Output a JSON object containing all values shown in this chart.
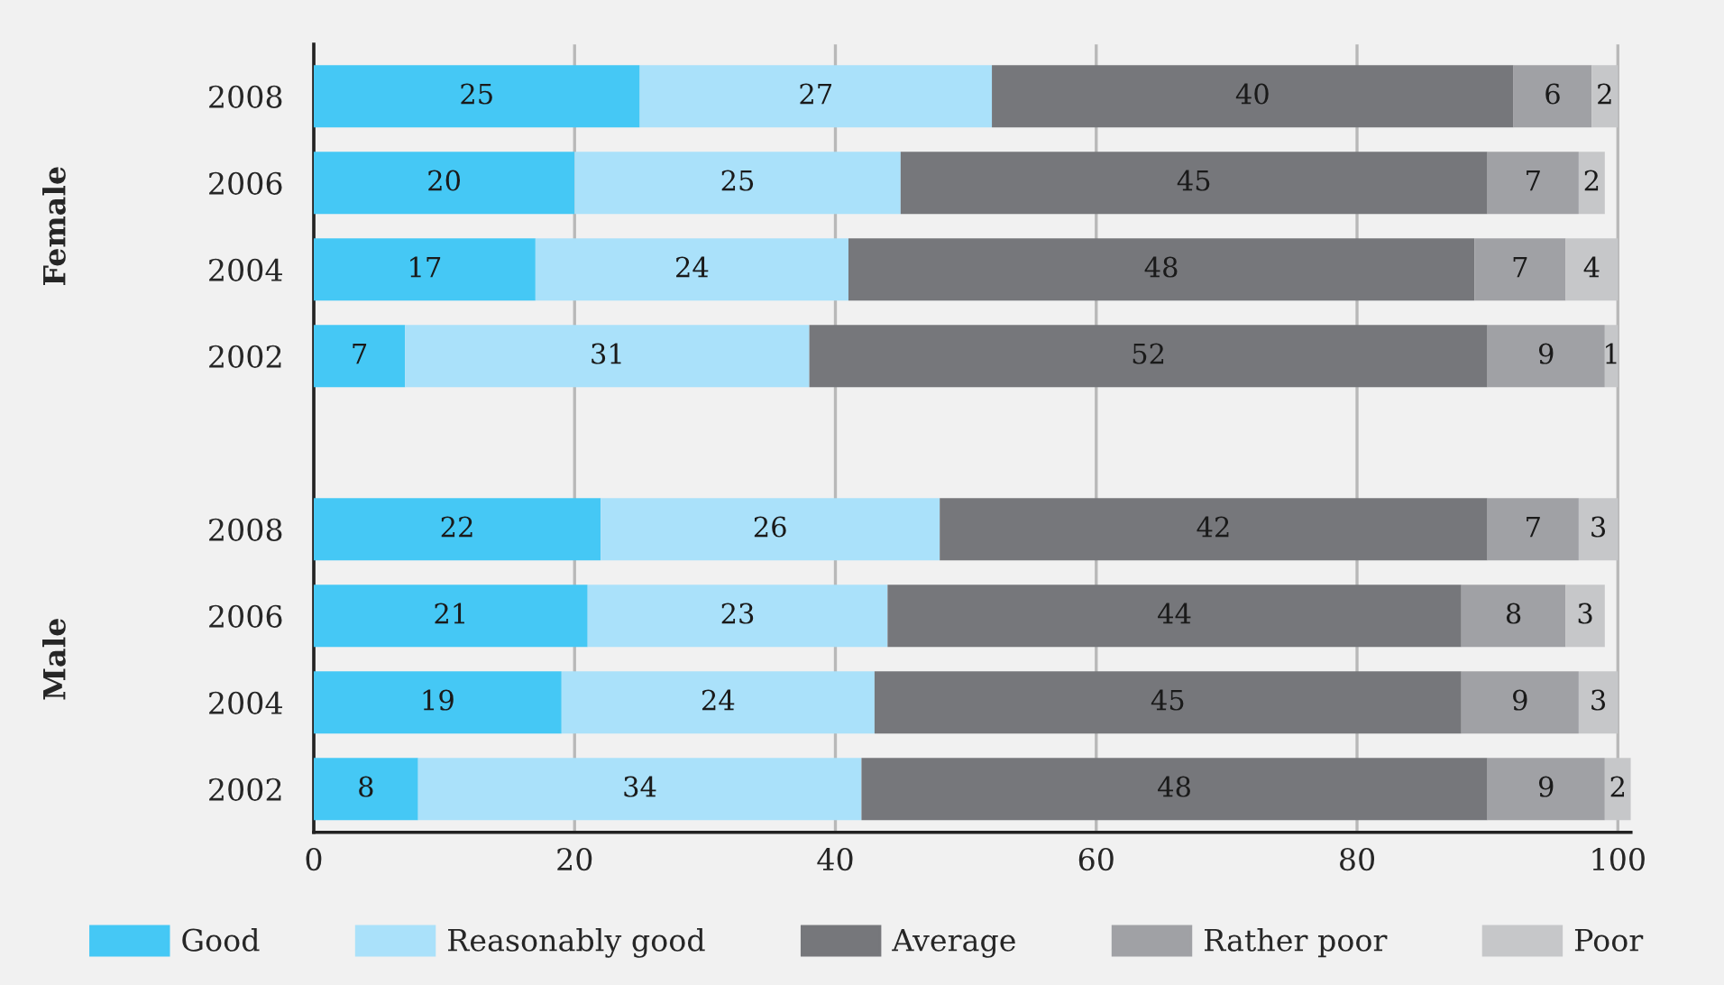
{
  "chart_data": {
    "type": "bar",
    "orientation": "horizontal",
    "stacked": true,
    "data_labels": true,
    "grid": "x",
    "legend": "bottom",
    "categories": [
      "2008",
      "2006",
      "2004",
      "2002",
      null,
      "2008",
      "2006",
      "2004",
      "2002"
    ],
    "annotations": [
      "Female",
      "Male"
    ],
    "xlim": [
      0,
      101
    ],
    "xticks": [
      0,
      20,
      40,
      60,
      80,
      100
    ],
    "series": [
      {
        "name": "Good",
        "color": "#45c8f5",
        "values": [
          25,
          20,
          17,
          7,
          null,
          22,
          21,
          19,
          8
        ]
      },
      {
        "name": "Reasonably good",
        "color": "#aae1fa",
        "values": [
          27,
          25,
          24,
          31,
          null,
          26,
          23,
          24,
          34
        ]
      },
      {
        "name": "Average",
        "color": "#76777b",
        "values": [
          40,
          45,
          48,
          52,
          null,
          42,
          44,
          45,
          48
        ]
      },
      {
        "name": "Rather poor",
        "color": "#a0a1a5",
        "values": [
          6,
          7,
          7,
          9,
          null,
          7,
          8,
          9,
          9
        ]
      },
      {
        "name": "Poor",
        "color": "#c6c7c9",
        "values": [
          2,
          2,
          4,
          1,
          null,
          3,
          3,
          3,
          2
        ]
      }
    ]
  }
}
